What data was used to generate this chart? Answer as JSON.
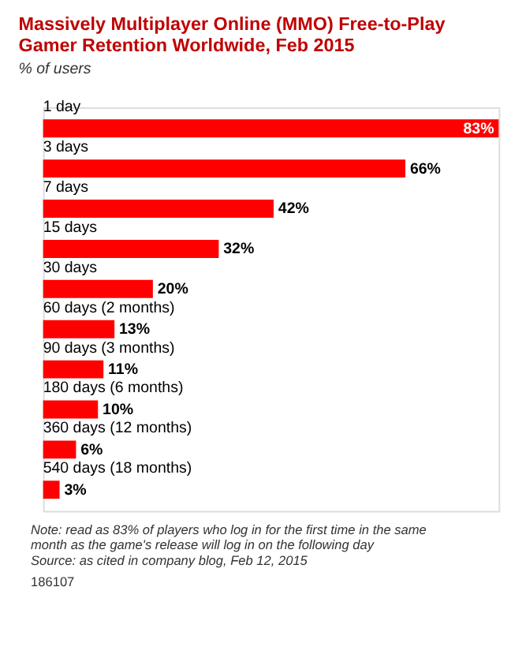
{
  "chart_data": {
    "type": "bar",
    "orientation": "horizontal",
    "title": "Massively Multiplayer Online (MMO) Free-to-Play Gamer Retention Worldwide, Feb 2015",
    "subtitle": "% of users",
    "categories": [
      "1 day",
      "3 days",
      "7 days",
      "15 days",
      "30 days",
      "60 days (2 months)",
      "90 days (3 months)",
      "180 days (6 months)",
      "360 days (12 months)",
      "540 days (18 months)"
    ],
    "values": [
      83,
      66,
      42,
      32,
      20,
      13,
      11,
      10,
      6,
      3
    ],
    "value_labels": [
      "83%",
      "66%",
      "42%",
      "32%",
      "20%",
      "13%",
      "11%",
      "10%",
      "6%",
      "3%"
    ],
    "color": "#ff0000",
    "xlim": [
      0,
      83
    ],
    "tick_labels": false,
    "grid": false,
    "annotations": [
      "Note: read as 83% of players who log in for the first time in the same month as the game's release will log in on the following day",
      "Source: as cited in company blog, Feb 12, 2015",
      "186107"
    ]
  }
}
